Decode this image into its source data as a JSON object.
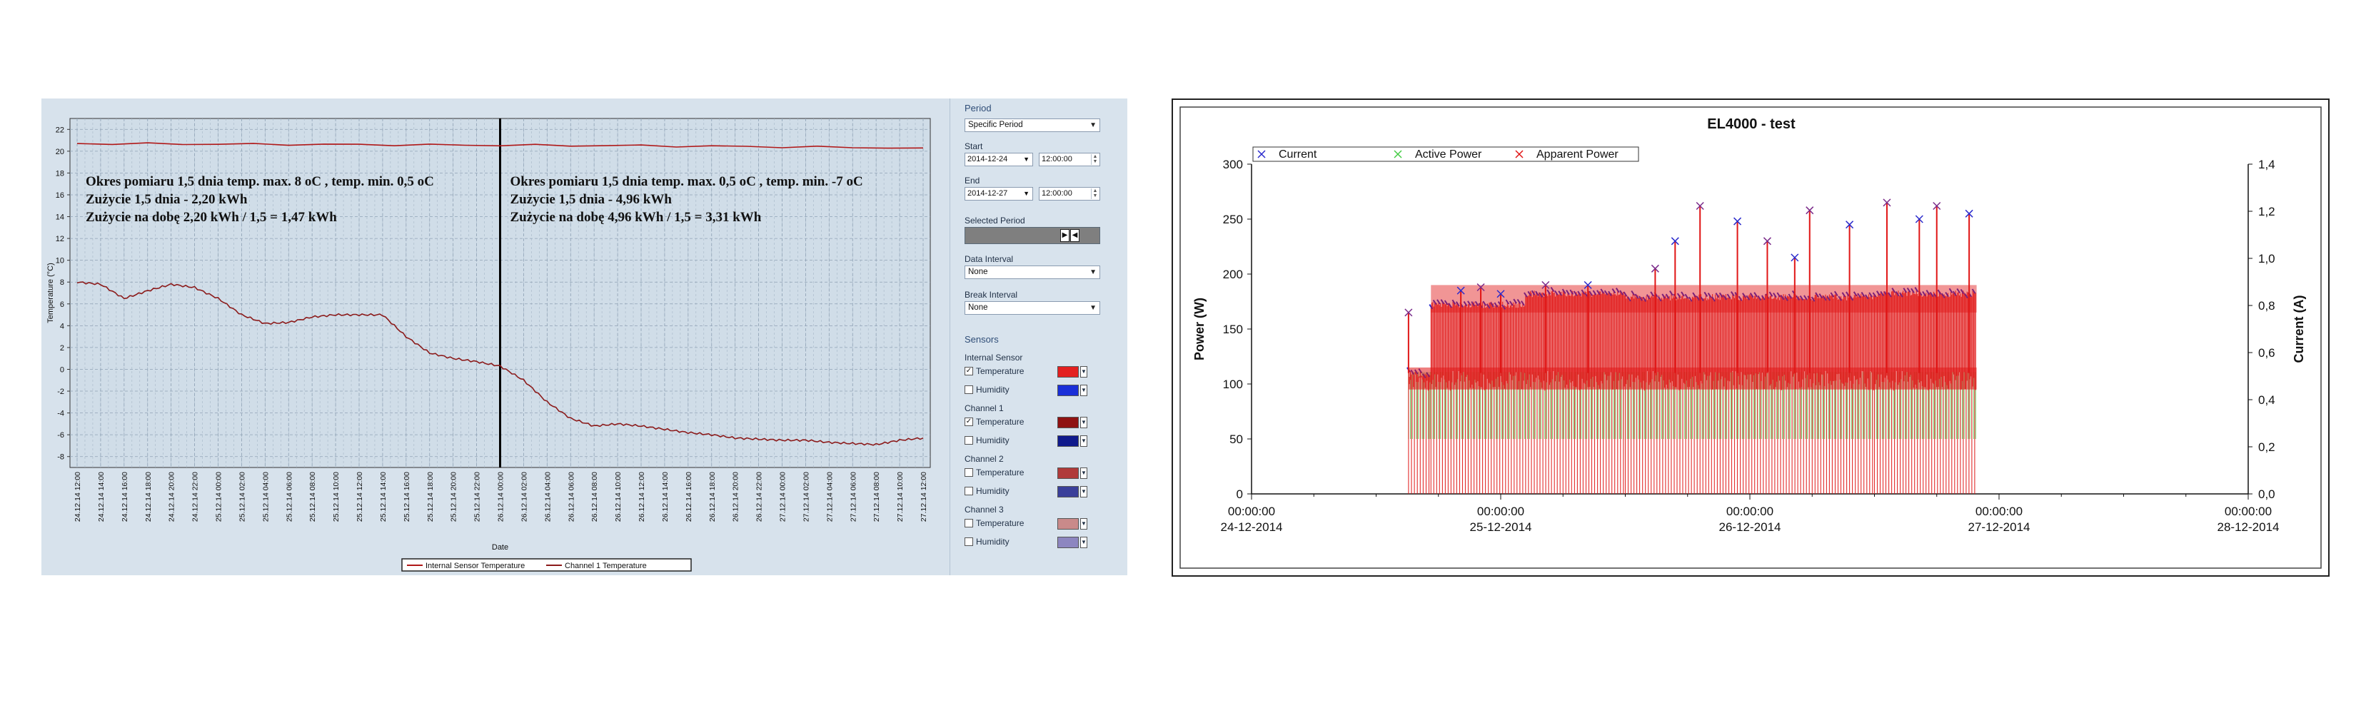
{
  "left_panel": {
    "chart_data": {
      "type": "line",
      "title": "",
      "xlabel": "Date",
      "ylabel": "Temperature (°C)",
      "ylim": [
        -9,
        23
      ],
      "yticks": [
        22,
        20,
        18,
        16,
        14,
        12,
        10,
        8,
        6,
        4,
        2,
        0,
        -2,
        -4,
        -6,
        -8
      ],
      "x_tick_labels": [
        "24.12.14 12:00",
        "24.12.14 14:00",
        "24.12.14 16:00",
        "24.12.14 18:00",
        "24.12.14 20:00",
        "24.12.14 22:00",
        "25.12.14 00:00",
        "25.12.14 02:00",
        "25.12.14 04:00",
        "25.12.14 06:00",
        "25.12.14 08:00",
        "25.12.14 10:00",
        "25.12.14 12:00",
        "25.12.14 14:00",
        "25.12.14 16:00",
        "25.12.14 18:00",
        "25.12.14 20:00",
        "25.12.14 22:00",
        "26.12.14 00:00",
        "26.12.14 02:00",
        "26.12.14 04:00",
        "26.12.14 06:00",
        "26.12.14 08:00",
        "26.12.14 10:00",
        "26.12.14 12:00",
        "26.12.14 14:00",
        "26.12.14 16:00",
        "26.12.14 18:00",
        "26.12.14 20:00",
        "26.12.14 22:00",
        "27.12.14 00:00",
        "27.12.14 02:00",
        "27.12.14 04:00",
        "27.12.14 06:00",
        "27.12.14 08:00",
        "27.12.14 10:00",
        "27.12.14 12:00"
      ],
      "grid": true,
      "legend_position": "bottom",
      "divider_at": "26.12.14 00:00",
      "series": [
        {
          "name": "Internal Sensor Temperature",
          "color": "#b01818",
          "x": [
            "24.12.14 12:00",
            "25.12.14 12:00",
            "26.12.14 12:00",
            "27.12.14 12:00"
          ],
          "y": [
            20.7,
            20.6,
            20.5,
            20.3
          ]
        },
        {
          "name": "Channel 1 Temperature",
          "color": "#8b1a1a",
          "x": [
            "24.12.14 12:00",
            "24.12.14 14:00",
            "24.12.14 16:00",
            "24.12.14 18:00",
            "24.12.14 20:00",
            "24.12.14 22:00",
            "25.12.14 00:00",
            "25.12.14 02:00",
            "25.12.14 04:00",
            "25.12.14 06:00",
            "25.12.14 08:00",
            "25.12.14 10:00",
            "25.12.14 12:00",
            "25.12.14 14:00",
            "25.12.14 16:00",
            "25.12.14 18:00",
            "25.12.14 20:00",
            "25.12.14 22:00",
            "26.12.14 00:00",
            "26.12.14 02:00",
            "26.12.14 04:00",
            "26.12.14 06:00",
            "26.12.14 08:00",
            "26.12.14 10:00",
            "26.12.14 12:00",
            "26.12.14 14:00",
            "26.12.14 16:00",
            "26.12.14 18:00",
            "26.12.14 20:00",
            "26.12.14 22:00",
            "27.12.14 00:00",
            "27.12.14 02:00",
            "27.12.14 04:00",
            "27.12.14 06:00",
            "27.12.14 08:00",
            "27.12.14 10:00",
            "27.12.14 12:00"
          ],
          "y": [
            8.0,
            7.8,
            6.5,
            7.2,
            7.8,
            7.5,
            6.5,
            5.0,
            4.2,
            4.3,
            4.8,
            5.0,
            5.0,
            5.0,
            3.0,
            1.5,
            1.0,
            0.7,
            0.3,
            -1.0,
            -3.0,
            -4.5,
            -5.2,
            -5.0,
            -5.2,
            -5.5,
            -5.8,
            -6.0,
            -6.3,
            -6.4,
            -6.5,
            -6.5,
            -6.7,
            -6.8,
            -6.9,
            -6.5,
            -6.3
          ]
        }
      ]
    },
    "annotations": [
      {
        "lines": [
          "Okres pomiaru 1,5 dnia temp. max. 8 oC , temp. min. 0,5 oC",
          "Zużycie 1,5 dnia - 2,20 kWh",
          "Zużycie na dobę 2,20 kWh / 1,5 = 1,47 kWh"
        ]
      },
      {
        "lines": [
          "Okres pomiaru 1,5 dnia temp. max. 0,5 oC , temp. min. -7 oC",
          "Zużycie 1,5 dnia - 4,96 kWh",
          "Zużycie na dobę 4,96 kWh / 1,5 = 3,31 kWh"
        ]
      }
    ],
    "sidebar": {
      "period_title": "Period",
      "period_select": "Specific Period",
      "start_label": "Start",
      "start_date": "2014-12-24",
      "start_time": "12:00:00",
      "end_label": "End",
      "end_date": "2014-12-27",
      "end_time": "12:00:00",
      "selected_period_label": "Selected Period",
      "data_interval_label": "Data Interval",
      "data_interval_value": "None",
      "break_interval_label": "Break Interval",
      "break_interval_value": "None",
      "sensors_title": "Sensors",
      "groups": [
        {
          "name": "Internal Sensor",
          "rows": [
            {
              "label": "Temperature",
              "checked": true,
              "color": "#e32020"
            },
            {
              "label": "Humidity",
              "checked": false,
              "color": "#1a2fd8"
            }
          ]
        },
        {
          "name": "Channel 1",
          "rows": [
            {
              "label": "Temperature",
              "checked": true,
              "color": "#8f1212"
            },
            {
              "label": "Humidity",
              "checked": false,
              "color": "#101a8c"
            }
          ]
        },
        {
          "name": "Channel 2",
          "rows": [
            {
              "label": "Temperature",
              "checked": false,
              "color": "#b03a3a"
            },
            {
              "label": "Humidity",
              "checked": false,
              "color": "#3a3f9a"
            }
          ]
        },
        {
          "name": "Channel 3",
          "rows": [
            {
              "label": "Temperature",
              "checked": false,
              "color": "#c98a8a"
            },
            {
              "label": "Humidity",
              "checked": false,
              "color": "#8d86c0"
            }
          ]
        }
      ]
    }
  },
  "right_panel": {
    "chart_data": {
      "type": "scatter",
      "title": "EL4000 - test",
      "xlabel": "",
      "ylabel": "Power (W)",
      "y2label": "Current (A)",
      "ylim": [
        0,
        300
      ],
      "y2lim": [
        0,
        1.4
      ],
      "yticks": [
        0,
        50,
        100,
        150,
        200,
        250,
        300
      ],
      "y2ticks": [
        "0,0",
        "0,2",
        "0,4",
        "0,6",
        "0,8",
        "1,0",
        "1,2",
        "1,4"
      ],
      "x_ticks": [
        {
          "time": "00:00:00",
          "date": "24-12-2014"
        },
        {
          "time": "00:00:00",
          "date": "25-12-2014"
        },
        {
          "time": "00:00:00",
          "date": "26-12-2014"
        },
        {
          "time": "00:00:00",
          "date": "27-12-2014"
        },
        {
          "time": "00:00:00",
          "date": "28-12-2014"
        }
      ],
      "legend_position": "top-left",
      "series": [
        {
          "name": "Current",
          "color": "#2a2acc",
          "marker": "x"
        },
        {
          "name": "Active Power",
          "color": "#44cc44",
          "marker": "x"
        },
        {
          "name": "Apparent Power",
          "color": "#e01515",
          "marker": "x"
        }
      ],
      "data_range_days": [
        0.63,
        2.91
      ],
      "segments": [
        {
          "from": 0.63,
          "to": 0.72,
          "baseline": 103,
          "upper": 112,
          "low": 55
        },
        {
          "from": 0.72,
          "to": 1.1,
          "baseline": 103,
          "upper": 175,
          "low": 55
        },
        {
          "from": 1.1,
          "to": 1.5,
          "baseline": 103,
          "upper": 185,
          "low": 55
        },
        {
          "from": 1.5,
          "to": 2.5,
          "baseline": 103,
          "upper": 182,
          "low": 55
        },
        {
          "from": 2.5,
          "to": 2.91,
          "baseline": 103,
          "upper": 185,
          "low": 55
        }
      ],
      "spikes": [
        {
          "x": 0.63,
          "y": 165
        },
        {
          "x": 0.84,
          "y": 185
        },
        {
          "x": 0.92,
          "y": 188
        },
        {
          "x": 1.0,
          "y": 182
        },
        {
          "x": 1.18,
          "y": 190
        },
        {
          "x": 1.35,
          "y": 190
        },
        {
          "x": 1.62,
          "y": 205
        },
        {
          "x": 1.7,
          "y": 230
        },
        {
          "x": 1.8,
          "y": 262
        },
        {
          "x": 1.95,
          "y": 248
        },
        {
          "x": 2.07,
          "y": 230
        },
        {
          "x": 2.18,
          "y": 215
        },
        {
          "x": 2.24,
          "y": 258
        },
        {
          "x": 2.4,
          "y": 245
        },
        {
          "x": 2.55,
          "y": 265
        },
        {
          "x": 2.68,
          "y": 250
        },
        {
          "x": 2.75,
          "y": 262
        },
        {
          "x": 2.88,
          "y": 255
        }
      ]
    }
  }
}
